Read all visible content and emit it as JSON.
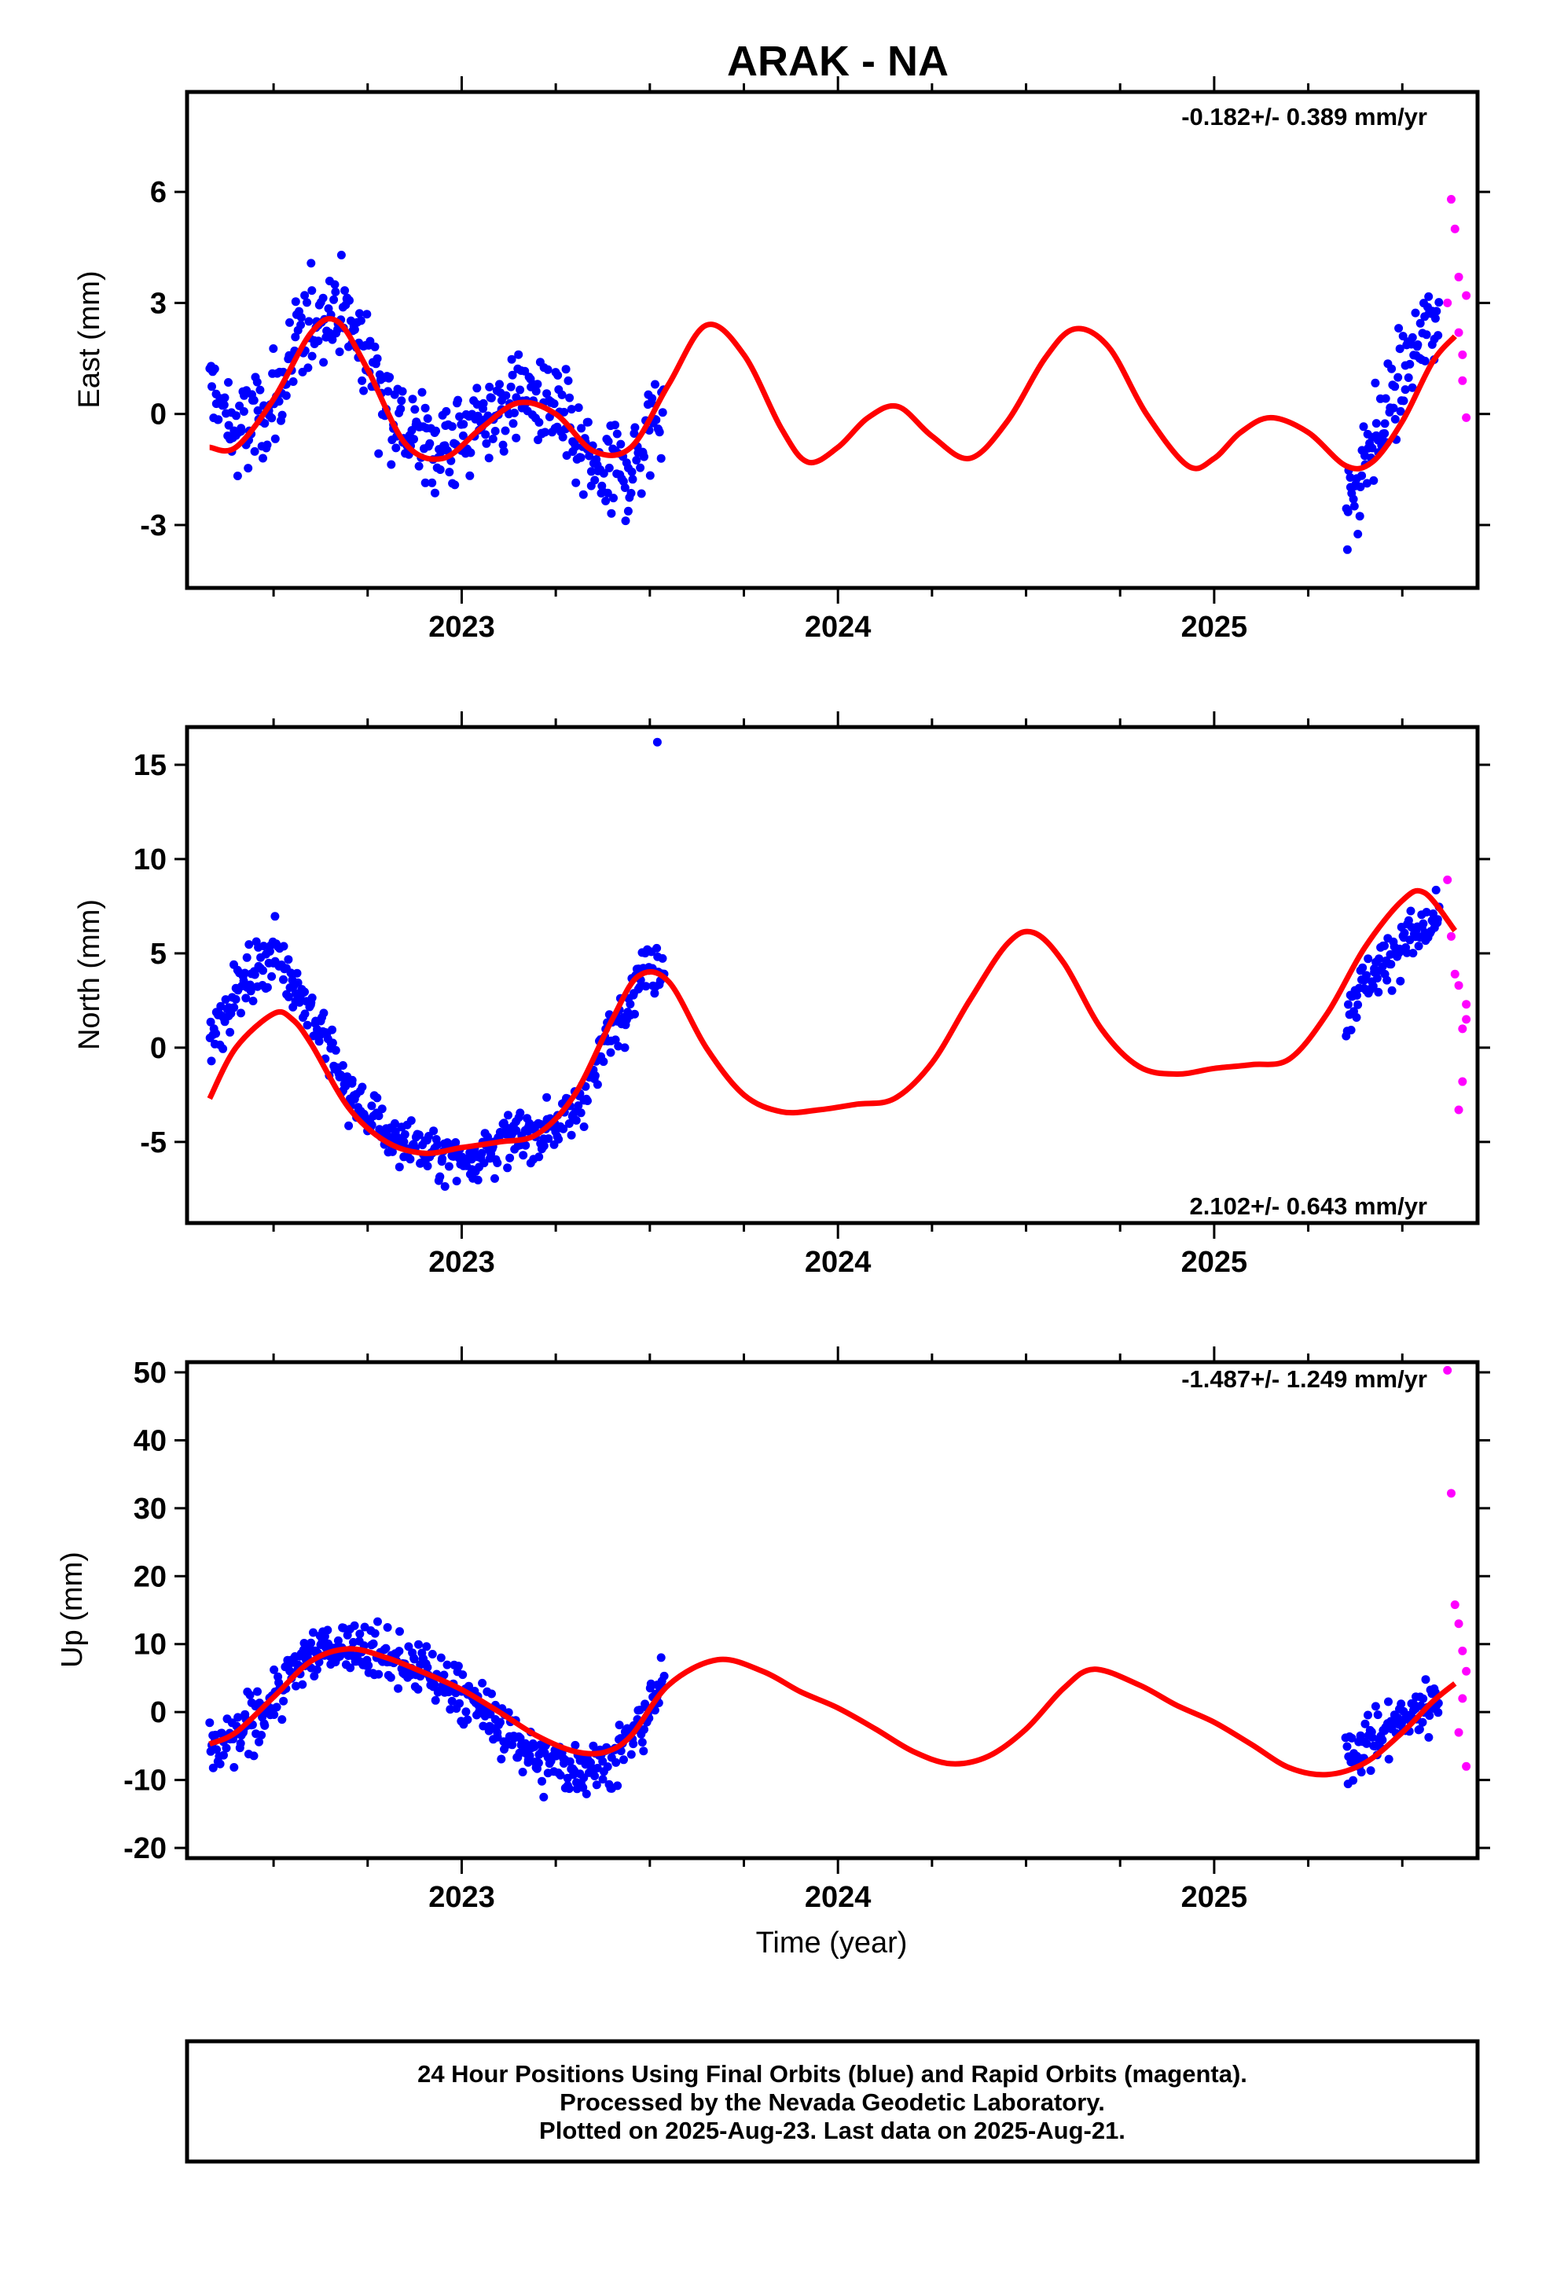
{
  "title": "ARAK - NA",
  "xlabel": "Time (year)",
  "colors": {
    "final": "#0000ff",
    "rapid": "#ff00ff",
    "model": "#ff0000",
    "frame": "#000000"
  },
  "footer": {
    "line1": "24 Hour Positions Using Final Orbits (blue) and Rapid Orbits (magenta).",
    "line2": "Processed by the Nevada Geodetic Laboratory.",
    "line3": "Plotted on 2025-Aug-23. Last data on 2025-Aug-21."
  },
  "chart_data": [
    {
      "type": "scatter",
      "ylabel": "East (mm)",
      "rate": "-0.182+/- 0.389 mm/yr",
      "xlim": [
        2022.27,
        2025.7
      ],
      "ylim": [
        -4.7,
        8.7
      ],
      "x_ticks": [
        2023,
        2024,
        2025
      ],
      "y_ticks": [
        -3,
        0,
        3,
        6
      ],
      "final_segments": [
        {
          "x": [
            2022.33,
            2022.4,
            2022.5,
            2022.6,
            2022.67,
            2022.75,
            2022.85,
            2022.95,
            2023.05,
            2023.15,
            2023.25,
            2023.35,
            2023.45,
            2023.54
          ],
          "y": [
            0.8,
            -0.6,
            0.2,
            2.6,
            3.0,
            1.6,
            -0.5,
            -0.9,
            -0.3,
            0.6,
            0.1,
            -1.6,
            -1.5,
            0.5
          ]
        },
        {
          "x": [
            2025.35,
            2025.4,
            2025.45,
            2025.5,
            2025.55,
            2025.6
          ],
          "y": [
            -2.8,
            -1.2,
            -0.2,
            1.0,
            2.0,
            2.8
          ]
        }
      ],
      "rapid_points": {
        "x": [
          2025.62,
          2025.63,
          2025.64,
          2025.65,
          2025.66,
          2025.67,
          2025.66,
          2025.65,
          2025.67
        ],
        "y": [
          3.0,
          5.8,
          5.0,
          3.7,
          1.6,
          3.2,
          0.9,
          2.2,
          -0.1
        ]
      },
      "series": [
        {
          "name": "",
          "x": [
            2022.33,
            2022.4,
            2022.5,
            2022.6,
            2022.67,
            2022.75,
            2022.85,
            2022.95,
            2023.05,
            2023.15,
            2023.25,
            2023.35,
            2023.45,
            2023.55,
            2023.65,
            2023.75,
            2023.85,
            2023.92,
            2024.0,
            2024.08,
            2024.16,
            2024.25,
            2024.35,
            2024.45,
            2024.55,
            2024.63,
            2024.72,
            2024.82,
            2024.93,
            2025.0,
            2025.07,
            2025.15,
            2025.25,
            2025.35,
            2025.42,
            2025.5,
            2025.58,
            2025.64
          ],
          "y": [
            -0.9,
            -0.9,
            0.4,
            2.2,
            2.5,
            1.2,
            -0.8,
            -1.2,
            -0.4,
            0.3,
            0.0,
            -1.0,
            -0.9,
            0.8,
            2.4,
            1.6,
            -0.4,
            -1.3,
            -0.9,
            -0.1,
            0.2,
            -0.6,
            -1.2,
            -0.2,
            1.5,
            2.3,
            1.8,
            0.0,
            -1.4,
            -1.2,
            -0.5,
            -0.1,
            -0.5,
            -1.4,
            -1.3,
            -0.2,
            1.4,
            2.1
          ]
        }
      ]
    },
    {
      "type": "scatter",
      "ylabel": "North (mm)",
      "rate": "2.102+/- 0.643 mm/yr",
      "xlim": [
        2022.27,
        2025.7
      ],
      "ylim": [
        -9.3,
        17
      ],
      "x_ticks": [
        2023,
        2024,
        2025
      ],
      "y_ticks": [
        -5,
        0,
        5,
        10,
        15
      ],
      "final_segments": [
        {
          "x": [
            2022.33,
            2022.4,
            2022.5,
            2022.6,
            2022.7,
            2022.8,
            2022.9,
            2023.0,
            2023.1,
            2023.2,
            2023.3,
            2023.4,
            2023.48,
            2023.54
          ],
          "y": [
            0.5,
            3.0,
            5.2,
            2.0,
            -2.5,
            -4.5,
            -5.5,
            -6.0,
            -5.0,
            -4.5,
            -3.5,
            1.0,
            4.0,
            4.5
          ]
        },
        {
          "x": [
            2025.35,
            2025.4,
            2025.45,
            2025.5,
            2025.55,
            2025.6
          ],
          "y": [
            2.0,
            3.5,
            4.5,
            5.5,
            6.2,
            6.8
          ]
        }
      ],
      "outlier": {
        "x": 2023.52,
        "y": 16.2
      },
      "rapid_points": {
        "x": [
          2025.62,
          2025.63,
          2025.64,
          2025.65,
          2025.66,
          2025.67,
          2025.66,
          2025.65,
          2025.67
        ],
        "y": [
          8.9,
          5.9,
          3.9,
          3.3,
          1.0,
          1.5,
          -1.8,
          -3.3,
          2.3
        ]
      },
      "series": [
        {
          "name": "",
          "x": [
            2022.33,
            2022.4,
            2022.5,
            2022.55,
            2022.6,
            2022.7,
            2022.8,
            2022.9,
            2023.0,
            2023.1,
            2023.2,
            2023.3,
            2023.4,
            2023.47,
            2023.55,
            2023.65,
            2023.75,
            2023.85,
            2023.95,
            2024.05,
            2024.15,
            2024.25,
            2024.35,
            2024.45,
            2024.52,
            2024.6,
            2024.7,
            2024.8,
            2024.9,
            2025.0,
            2025.1,
            2025.2,
            2025.3,
            2025.4,
            2025.5,
            2025.56,
            2025.64
          ],
          "y": [
            -2.7,
            0.0,
            1.8,
            1.5,
            0.2,
            -3.2,
            -5.0,
            -5.6,
            -5.3,
            -5.0,
            -4.6,
            -2.5,
            1.5,
            3.8,
            3.5,
            0.0,
            -2.5,
            -3.4,
            -3.3,
            -3.0,
            -2.7,
            -0.8,
            2.5,
            5.5,
            6.1,
            4.5,
            1.0,
            -1.0,
            -1.4,
            -1.1,
            -0.9,
            -0.6,
            1.8,
            5.3,
            7.8,
            8.2,
            6.2
          ]
        }
      ]
    },
    {
      "type": "scatter",
      "ylabel": "Up (mm)",
      "rate": "-1.487+/- 1.249 mm/yr",
      "xlim": [
        2022.27,
        2025.7
      ],
      "ylim": [
        -21.5,
        51.5
      ],
      "x_ticks": [
        2023,
        2024,
        2025
      ],
      "y_ticks": [
        -20,
        -10,
        0,
        10,
        20,
        30,
        40,
        50
      ],
      "final_segments": [
        {
          "x": [
            2022.33,
            2022.4,
            2022.5,
            2022.6,
            2022.7,
            2022.8,
            2022.9,
            2023.0,
            2023.1,
            2023.2,
            2023.3,
            2023.4,
            2023.48,
            2023.54
          ],
          "y": [
            -6.0,
            -4.0,
            2.0,
            9.0,
            10.0,
            8.0,
            6.0,
            3.0,
            -2.0,
            -7.0,
            -8.0,
            -7.0,
            -2.0,
            5.0
          ]
        },
        {
          "x": [
            2025.35,
            2025.4,
            2025.45,
            2025.5,
            2025.55,
            2025.6
          ],
          "y": [
            -6.5,
            -4.5,
            -3.0,
            -1.0,
            0.5,
            2.5
          ]
        }
      ],
      "rapid_points": {
        "x": [
          2025.62,
          2025.63,
          2025.64,
          2025.65,
          2025.66,
          2025.67,
          2025.66,
          2025.65,
          2025.67
        ],
        "y": [
          50.3,
          32.2,
          15.8,
          13.0,
          9.0,
          6.0,
          2.0,
          -3.0,
          -8.0
        ]
      },
      "series": [
        {
          "name": "",
          "x": [
            2022.33,
            2022.4,
            2022.5,
            2022.6,
            2022.7,
            2022.8,
            2022.9,
            2023.0,
            2023.1,
            2023.2,
            2023.3,
            2023.38,
            2023.45,
            2023.55,
            2023.68,
            2023.8,
            2023.9,
            2024.0,
            2024.1,
            2024.2,
            2024.3,
            2024.4,
            2024.5,
            2024.6,
            2024.68,
            2024.8,
            2024.9,
            2025.0,
            2025.1,
            2025.2,
            2025.3,
            2025.4,
            2025.5,
            2025.58,
            2025.64
          ],
          "y": [
            -4.7,
            -3.0,
            2.2,
            7.5,
            9.3,
            8.0,
            5.8,
            3.3,
            0.0,
            -3.5,
            -5.8,
            -5.9,
            -3.5,
            4.0,
            7.7,
            6.0,
            3.0,
            0.6,
            -2.5,
            -5.8,
            -7.6,
            -6.5,
            -2.5,
            3.5,
            6.3,
            4.0,
            1.0,
            -1.5,
            -4.8,
            -8.2,
            -9.2,
            -7.5,
            -3.0,
            1.5,
            4.2
          ]
        }
      ]
    }
  ]
}
